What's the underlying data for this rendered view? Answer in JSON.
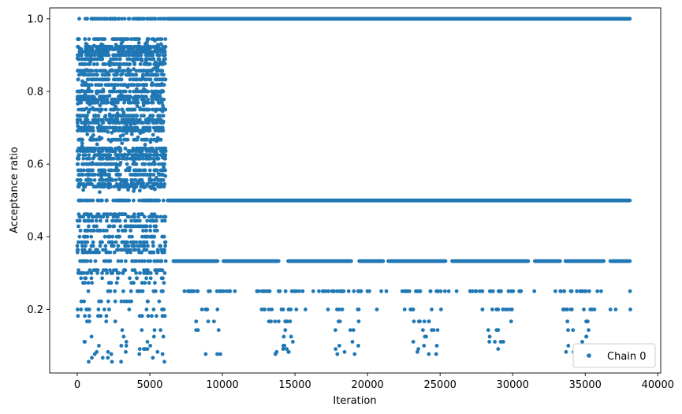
{
  "chart_data": {
    "type": "scatter",
    "xlabel": "Iteration",
    "ylabel": "Acceptance ratio",
    "xlim": [
      -1900,
      40200
    ],
    "ylim": [
      0.025,
      1.03
    ],
    "x_ticks": [
      0,
      5000,
      10000,
      15000,
      20000,
      25000,
      30000,
      35000,
      40000
    ],
    "x_tick_labels": [
      "0",
      "5000",
      "10000",
      "15000",
      "20000",
      "25000",
      "30000",
      "35000",
      "40000"
    ],
    "y_ticks": [
      0.2,
      0.4,
      0.6,
      0.8,
      1.0
    ],
    "y_tick_labels": [
      "0.2",
      "0.4",
      "0.6",
      "0.8",
      "1.0"
    ],
    "grid": false,
    "legend_position": "bottom-right",
    "marker_color": "#1f77b4",
    "series": [
      {
        "name": "Chain 0",
        "phases": [
          {
            "x_range": [
              0,
              6100
            ],
            "y_levels": [
              1.0,
              0.944,
              0.923,
              0.917,
              0.909,
              0.9,
              0.889,
              0.875,
              0.857,
              0.846,
              0.833,
              0.818,
              0.8,
              0.786,
              0.778,
              0.769,
              0.75,
              0.733,
              0.722,
              0.714,
              0.7,
              0.692,
              0.667,
              0.643,
              0.636,
              0.625,
              0.615,
              0.6,
              0.583,
              0.571,
              0.556,
              0.545,
              0.538,
              0.5,
              0.462,
              0.455,
              0.444,
              0.429,
              0.417,
              0.4,
              0.385,
              0.375,
              0.364,
              0.357,
              0.333,
              0.308,
              0.3,
              0.286,
              0.273,
              0.25,
              0.222,
              0.2,
              0.182,
              0.167,
              0.143,
              0.125,
              0.111,
              0.1,
              0.091,
              0.083,
              0.077,
              0.067,
              0.056
            ]
          },
          {
            "x_range": [
              6100,
              38200
            ],
            "continuous_levels": [
              1.0,
              0.5,
              0.333
            ],
            "sparse_levels": [
              0.25,
              0.2,
              0.167,
              0.143,
              0.125,
              0.111,
              0.1,
              0.091,
              0.083,
              0.077
            ]
          }
        ]
      }
    ]
  }
}
